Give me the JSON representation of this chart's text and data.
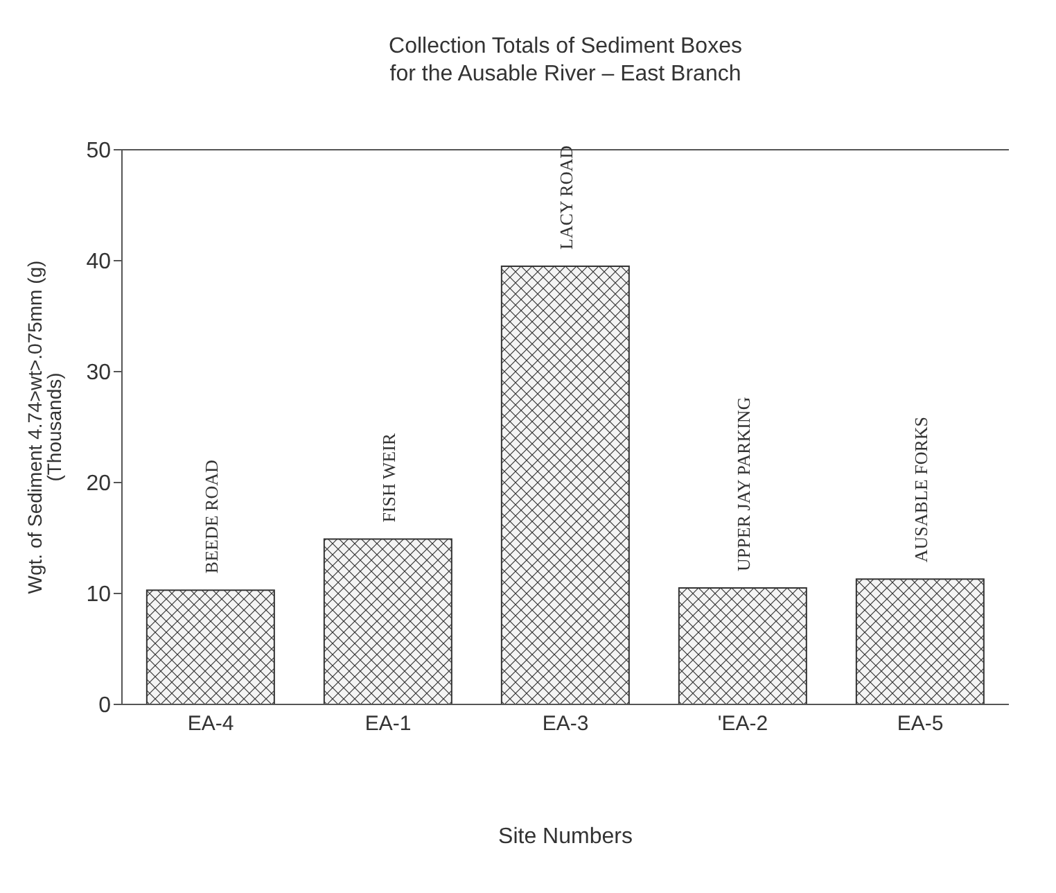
{
  "chart_data": {
    "type": "bar",
    "title": "Collection Totals of Sediment Boxes\nfor the Ausable River – East Branch",
    "xlabel": "Site Numbers",
    "ylabel": "Wgt. of Sediment 4.74>wt>.075mm (g)\n(Thousands)",
    "categories": [
      "EA-4",
      "EA-1",
      "EA-3",
      "'EA-2",
      "EA-5"
    ],
    "values": [
      10.3,
      14.9,
      39.5,
      10.5,
      11.3
    ],
    "color": "#333333",
    "ylim": [
      0,
      50
    ],
    "yticks": [
      0,
      10,
      20,
      30,
      40,
      50
    ],
    "grid": false,
    "annotations": [
      "BEEDE ROAD",
      "FISH WEIR",
      "LACY ROAD",
      "UPPER JAY PARKING",
      "AUSABLE FORKS"
    ]
  }
}
